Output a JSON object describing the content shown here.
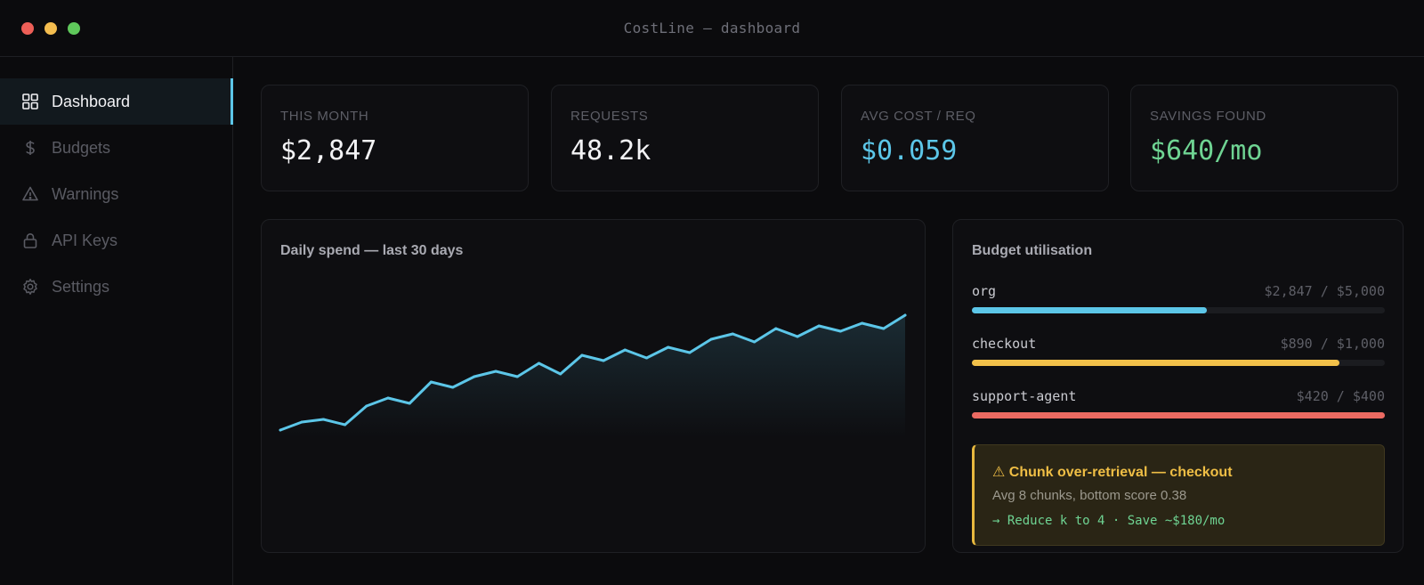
{
  "window": {
    "title": "CostLine — dashboard",
    "lights": [
      "#ed5f57",
      "#f4bd4f",
      "#5fc85b"
    ]
  },
  "sidebar": {
    "items": [
      {
        "label": "Dashboard",
        "icon": "grid-icon",
        "active": true
      },
      {
        "label": "Budgets",
        "icon": "dollar-icon",
        "active": false
      },
      {
        "label": "Warnings",
        "icon": "warning-triangle-icon",
        "active": false
      },
      {
        "label": "API Keys",
        "icon": "lock-icon",
        "active": false
      },
      {
        "label": "Settings",
        "icon": "gear-icon",
        "active": false
      }
    ],
    "accent": "#5cc6e8"
  },
  "stats": [
    {
      "label": "THIS MONTH",
      "value": "$2,847",
      "color": "#f3f3f5"
    },
    {
      "label": "REQUESTS",
      "value": "48.2k",
      "color": "#f3f3f5"
    },
    {
      "label": "AVG COST / REQ",
      "value": "$0.059",
      "color": "#5cc6e8"
    },
    {
      "label": "SAVINGS FOUND",
      "value": "$640/mo",
      "color": "#6fd493"
    }
  ],
  "spend_panel": {
    "title": "Daily spend — last 30 days"
  },
  "chart_data": {
    "type": "area",
    "title": "Daily spend — last 30 days",
    "xlabel": "",
    "ylabel": "",
    "grid": false,
    "legend": "none",
    "x": [
      1,
      2,
      3,
      4,
      5,
      6,
      7,
      8,
      9,
      10,
      11,
      12,
      13,
      14,
      15,
      16,
      17,
      18,
      19,
      20,
      21,
      22,
      23,
      24,
      25,
      26,
      27,
      28,
      29,
      30
    ],
    "values": [
      28,
      31,
      32,
      30,
      37,
      40,
      38,
      46,
      44,
      48,
      50,
      48,
      53,
      49,
      56,
      54,
      58,
      55,
      59,
      57,
      62,
      64,
      61,
      66,
      63,
      67,
      65,
      68,
      66,
      71
    ],
    "ylim": [
      0,
      80
    ],
    "color": "#5cc6e8"
  },
  "budget_panel": {
    "title": "Budget utilisation",
    "items": [
      {
        "name": "org",
        "amount": "$2,847 / $5,000",
        "fraction": 0.57,
        "color": "#5cc6e8"
      },
      {
        "name": "checkout",
        "amount": "$890 / $1,000",
        "fraction": 0.89,
        "color": "#f2c14a"
      },
      {
        "name": "support-agent",
        "amount": "$420 / $400",
        "fraction": 1.0,
        "color": "#eb6a62"
      }
    ]
  },
  "warning": {
    "title": "⚠ Chunk over-retrieval — checkout",
    "description": "Avg 8 chunks, bottom score 0.38",
    "action": "→ Reduce k to 4 · Save ~$180/mo"
  }
}
